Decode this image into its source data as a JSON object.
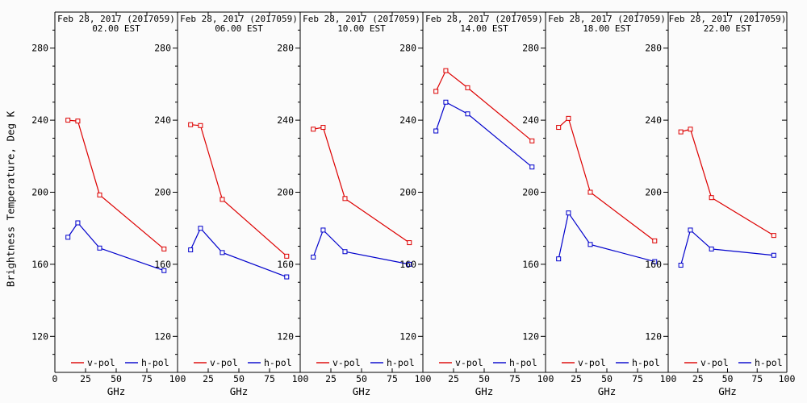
{
  "figure": {
    "ylabel": "Brightness Temperature, Deg K",
    "xlabel": "GHz"
  },
  "chart_data": {
    "type": "line",
    "x": [
      10.65,
      18.7,
      36.5,
      89.0
    ],
    "xlabel": "GHz",
    "ylabel": "Brightness Temperature, Deg K",
    "xlim": [
      0,
      100
    ],
    "ylim": [
      100,
      300
    ],
    "xticks": [
      0,
      25,
      50,
      75,
      100
    ],
    "yticks": [
      120,
      160,
      200,
      240,
      280
    ],
    "minor_ytick_step": 10,
    "grid": false,
    "legend_position": "bottom-inside",
    "legend": [
      {
        "label": "v-pol",
        "color": "#dd0000"
      },
      {
        "label": "h-pol",
        "color": "#0000cc"
      }
    ],
    "panels": [
      {
        "title_line1": "Feb 28, 2017 (2017059)",
        "title_line2": "02.00 EST",
        "series": [
          {
            "name": "v-pol",
            "color": "#dd0000",
            "values": [
              240.0,
              239.5,
              198.5,
              168.5
            ]
          },
          {
            "name": "h-pol",
            "color": "#0000cc",
            "values": [
              175.0,
              183.0,
              169.0,
              156.5
            ]
          }
        ]
      },
      {
        "title_line1": "Feb 28, 2017 (2017059)",
        "title_line2": "06.00 EST",
        "series": [
          {
            "name": "v-pol",
            "color": "#dd0000",
            "values": [
              237.5,
              237.0,
              196.0,
              164.5
            ]
          },
          {
            "name": "h-pol",
            "color": "#0000cc",
            "values": [
              168.0,
              180.0,
              166.5,
              153.0
            ]
          }
        ]
      },
      {
        "title_line1": "Feb 28, 2017 (2017059)",
        "title_line2": "10.00 EST",
        "series": [
          {
            "name": "v-pol",
            "color": "#dd0000",
            "values": [
              235.0,
              236.0,
              196.5,
              172.0
            ]
          },
          {
            "name": "h-pol",
            "color": "#0000cc",
            "values": [
              164.0,
              179.0,
              167.0,
              160.0
            ]
          }
        ]
      },
      {
        "title_line1": "Feb 28, 2017 (2017059)",
        "title_line2": "14.00 EST",
        "series": [
          {
            "name": "v-pol",
            "color": "#dd0000",
            "values": [
              256.0,
              267.5,
              258.0,
              228.5
            ]
          },
          {
            "name": "h-pol",
            "color": "#0000cc",
            "values": [
              234.0,
              250.0,
              243.5,
              214.0
            ]
          }
        ]
      },
      {
        "title_line1": "Feb 28, 2017 (2017059)",
        "title_line2": "18.00 EST",
        "series": [
          {
            "name": "v-pol",
            "color": "#dd0000",
            "values": [
              236.0,
              241.0,
              200.0,
              173.0
            ]
          },
          {
            "name": "h-pol",
            "color": "#0000cc",
            "values": [
              163.0,
              188.5,
              171.0,
              161.5
            ]
          }
        ]
      },
      {
        "title_line1": "Feb 28, 2017 (2017059)",
        "title_line2": "22.00 EST",
        "series": [
          {
            "name": "v-pol",
            "color": "#dd0000",
            "values": [
              233.5,
              235.0,
              197.0,
              176.0
            ]
          },
          {
            "name": "h-pol",
            "color": "#0000cc",
            "values": [
              159.5,
              179.0,
              168.5,
              165.0
            ]
          }
        ]
      }
    ]
  }
}
